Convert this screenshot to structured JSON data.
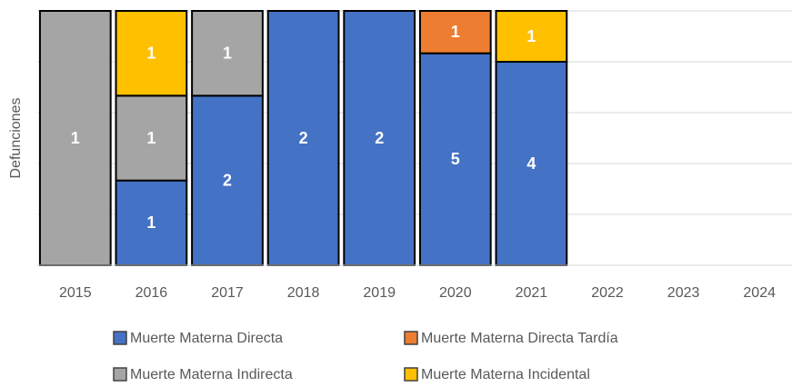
{
  "chart_data": {
    "type": "bar",
    "stacking": "percent",
    "y_label": "Defunciones",
    "categories": [
      "2015",
      "2016",
      "2017",
      "2018",
      "2019",
      "2020",
      "2021",
      "2022",
      "2023",
      "2024"
    ],
    "series": [
      {
        "name": "Muerte Materna Directa",
        "color": "#4472c4",
        "values": [
          null,
          1,
          2,
          2,
          2,
          5,
          4,
          null,
          null,
          null
        ]
      },
      {
        "name": "Muerte Materna Directa Tardía",
        "color": "#ed7d31",
        "values": [
          null,
          null,
          null,
          null,
          null,
          1,
          null,
          null,
          null,
          null
        ]
      },
      {
        "name": "Muerte Materna Indirecta",
        "color": "#a5a5a5",
        "values": [
          1,
          1,
          1,
          null,
          null,
          null,
          null,
          null,
          null,
          null
        ]
      },
      {
        "name": "Muerte Materna Incidental",
        "color": "#ffc000",
        "values": [
          null,
          1,
          null,
          null,
          null,
          null,
          1,
          null,
          null,
          null
        ]
      }
    ],
    "ylim": [
      0,
      100
    ],
    "yticks": [
      0,
      20,
      40,
      60,
      80,
      100
    ],
    "grid": true
  }
}
